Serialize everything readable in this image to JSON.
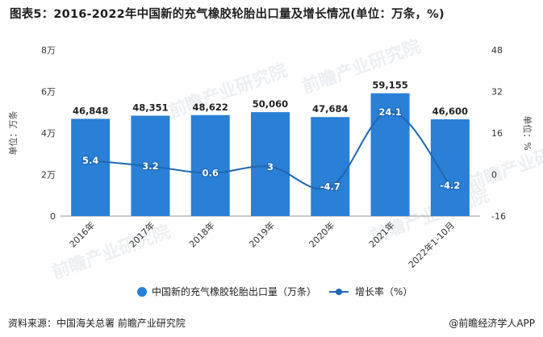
{
  "title": "图表5：2016-2022年中国新的充气橡胶轮胎出口量及增长情况(单位：万条，%)",
  "footer": {
    "source": "资料来源：中国海关总署 前瞻产业研究院",
    "brand": "@前瞻经济学人APP"
  },
  "watermark": "前瞻产业研究院",
  "colors": {
    "bar": "#2a7fd6",
    "line": "#1f66b2",
    "marker": "#1f66b2"
  },
  "chart_data": {
    "type": "bar",
    "categories": [
      "2016年",
      "2017年",
      "2018年",
      "2019年",
      "2020年",
      "2021年",
      "2022年1-10月"
    ],
    "series": [
      {
        "name": "中国新的充气橡胶轮胎出口量（万条）",
        "type": "bar",
        "axis": "left",
        "values": [
          46848,
          48351,
          48622,
          50060,
          47684,
          59155,
          46600
        ],
        "labels": [
          "46,848",
          "48,351",
          "48,622",
          "50,060",
          "47,684",
          "59,155",
          "46,600"
        ]
      },
      {
        "name": "增长率（%）",
        "type": "line",
        "axis": "right",
        "values": [
          5.4,
          3.2,
          0.6,
          3,
          -4.7,
          24.1,
          -4.2
        ],
        "labels": [
          "5.4",
          "3.2",
          "0.6",
          "3",
          "-4.7",
          "24.1",
          "-4.2"
        ]
      }
    ],
    "ylabel": "单位：万条",
    "y2label": "单位：%",
    "ylim": [
      0,
      80000
    ],
    "y2lim": [
      -16,
      48
    ],
    "yticks": [
      0,
      20000,
      40000,
      60000,
      80000
    ],
    "yticklabels": [
      "0",
      "2万",
      "4万",
      "6万",
      "8万"
    ],
    "y2ticks": [
      -16,
      0,
      16,
      32,
      48
    ],
    "y2ticklabels": [
      "-16",
      "0",
      "16",
      "32",
      "48"
    ],
    "grid": false,
    "legend": "bottom"
  }
}
